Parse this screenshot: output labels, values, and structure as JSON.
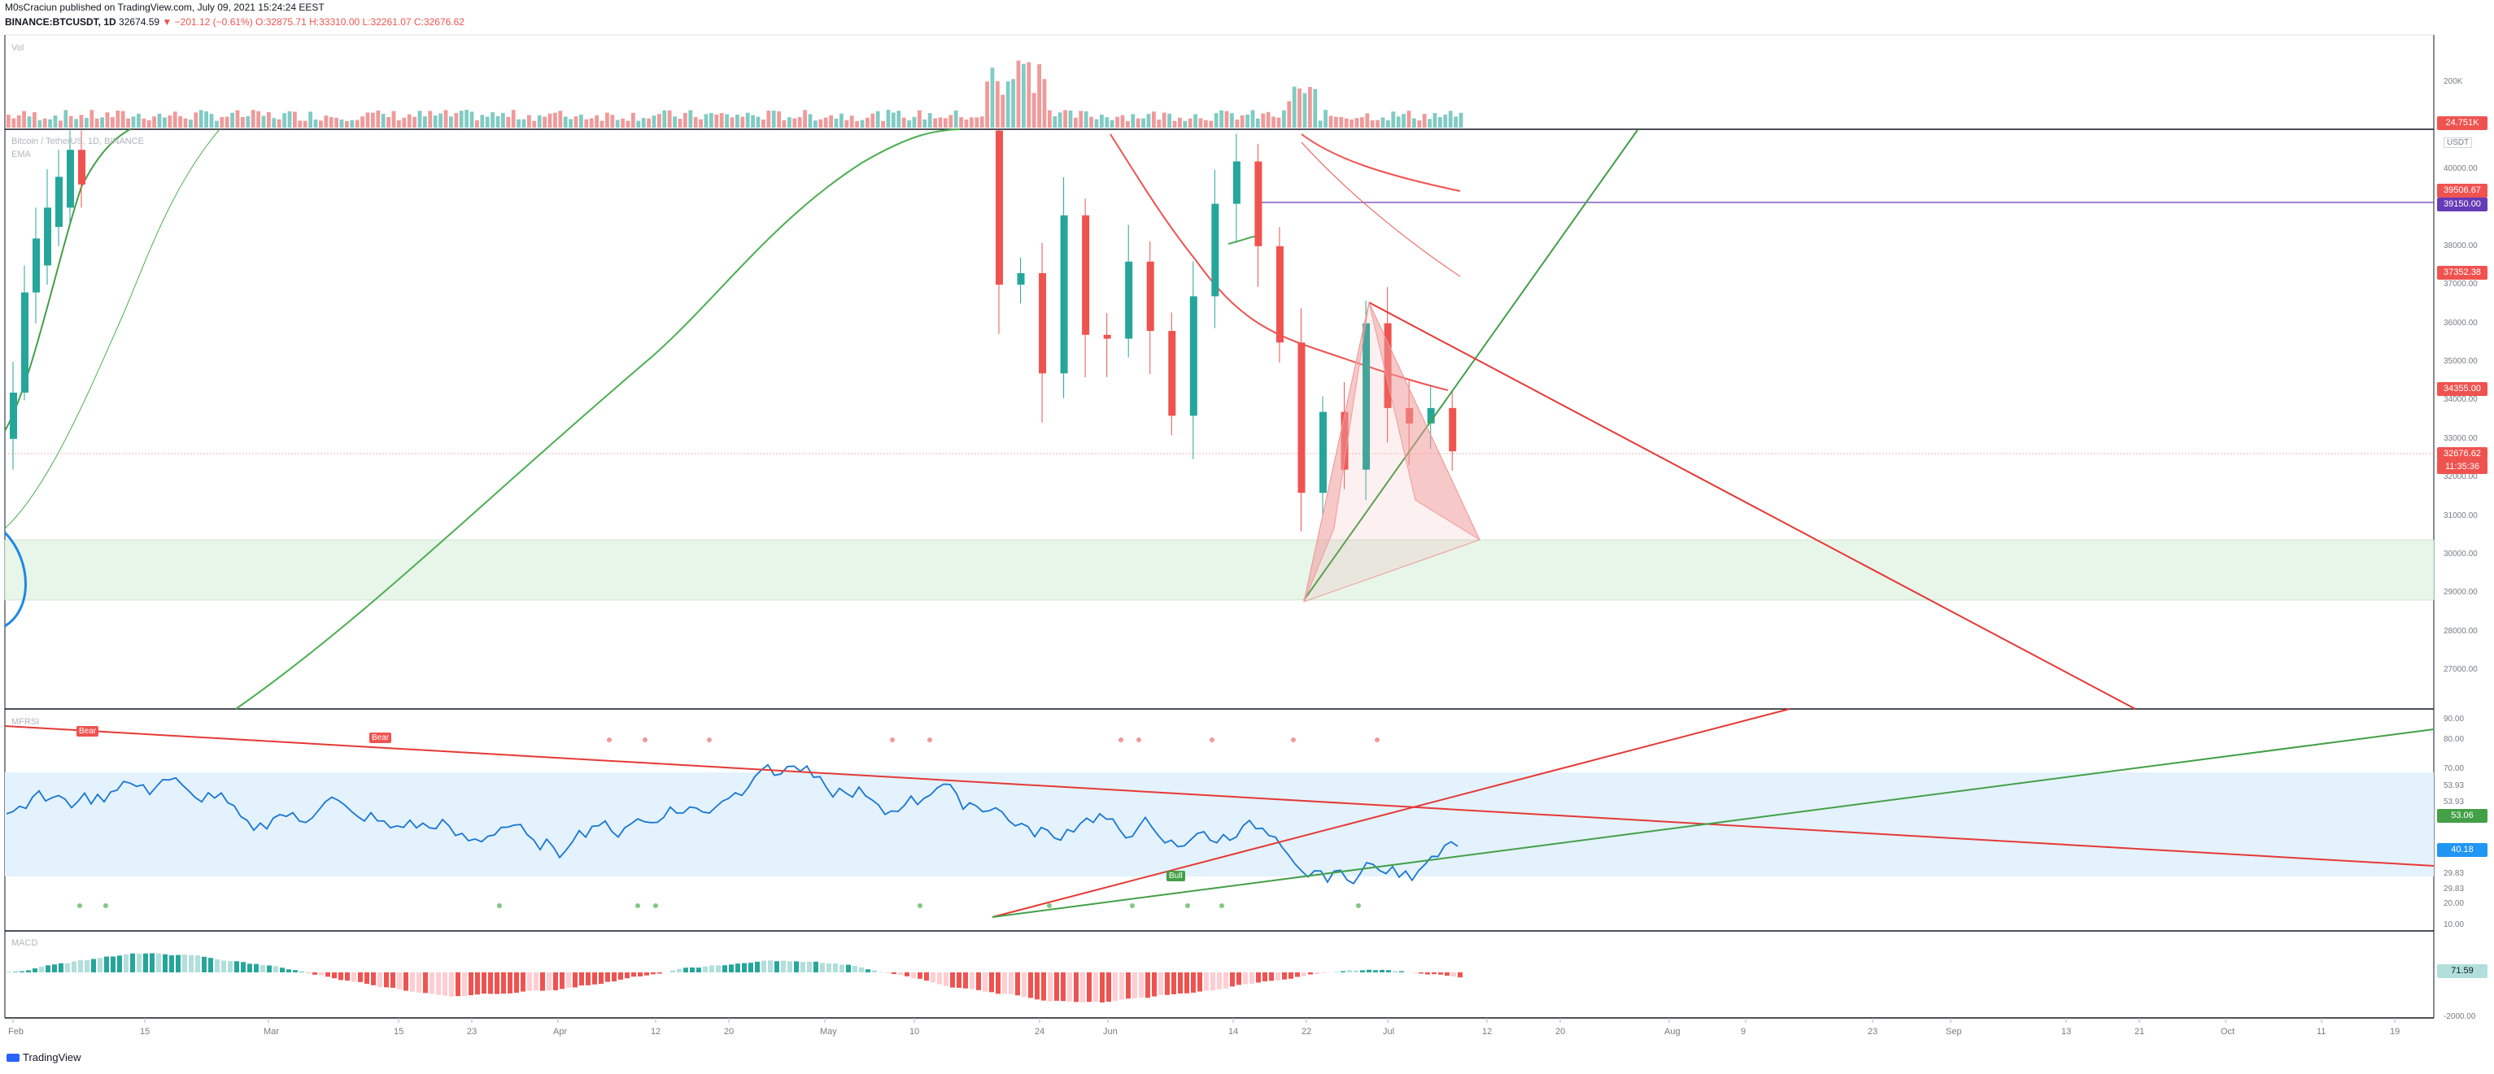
{
  "header": {
    "line1": "M0sCraciun published on TradingView.com, July 09, 2021 15:24:24 EEST",
    "symbol": "BINANCE:BTCUSDT, 1D",
    "price": "32674.59",
    "change": "▼ −201.12 (−0.61%)",
    "o": "O:32875.71",
    "h": "H:33310.00",
    "l": "L:32261.07",
    "c": "C:32676.62"
  },
  "panes": {
    "vol": "Vol",
    "main_title": "Bitcoin / TetherUS, 1D, BINANCE",
    "ema": "EMA",
    "rsi": "MFRSI",
    "macd": "MACD"
  },
  "labels": {
    "bear1": "Bear",
    "bear2": "Bear",
    "bull": "Bull"
  },
  "price_tags": {
    "vol_last": "24.751K",
    "usdt": "USDT",
    "t1": "39506.67",
    "t2": "39150.00",
    "t3": "37352.38",
    "t4": "34355.00",
    "t5": "32676.62",
    "t6": "11:35:36",
    "rsi1": "53.06",
    "rsi2": "40.18",
    "macd1": "71.59",
    "vol_axis": "200K"
  },
  "axis": {
    "price_ticks": [
      "40000.00",
      "39000.00",
      "38000.00",
      "37000.00",
      "36000.00",
      "35000.00",
      "34000.00",
      "33000.00",
      "32000.00",
      "31000.00",
      "30000.00",
      "29000.00",
      "28000.00",
      "27000.00"
    ],
    "rsi_ticks": [
      "90.00",
      "80.00",
      "70.00",
      "53.93",
      "53.93",
      "29.83",
      "29.83",
      "20.00",
      "10.00"
    ],
    "macd_tick": "-2000.00",
    "x_ticks": [
      "Feb",
      "15",
      "Mar",
      "15",
      "23",
      "Apr",
      "12",
      "20",
      "May",
      "10",
      "24",
      "Jun",
      "14",
      "22",
      "Jul",
      "12",
      "20",
      "Aug",
      "9",
      "23",
      "Sep",
      "13",
      "21",
      "Oct",
      "11",
      "19"
    ]
  },
  "brand": "TradingView",
  "colors": {
    "up": "#26a69a",
    "down": "#ef5350",
    "ema_fast": "#ef5350",
    "ema_slow": "#4caf50",
    "rsi_line": "#2962ff",
    "zone": "#e8f5e9"
  },
  "chart_data": {
    "type": "candlestick",
    "title": "Bitcoin / TetherUS, 1D, BINANCE",
    "ohlc_last": {
      "open": 32875.71,
      "high": 33310.0,
      "low": 32261.07,
      "close": 32676.62
    },
    "recent_closes": [
      {
        "x": "May 19",
        "close": 37000
      },
      {
        "x": "May 21",
        "close": 37300
      },
      {
        "x": "May 23",
        "close": 34700
      },
      {
        "x": "May 25",
        "close": 38800
      },
      {
        "x": "May 27",
        "close": 35700
      },
      {
        "x": "May 30",
        "close": 35600
      },
      {
        "x": "Jun 2",
        "close": 37600
      },
      {
        "x": "Jun 5",
        "close": 35800
      },
      {
        "x": "Jun 8",
        "close": 33600
      },
      {
        "x": "Jun 10",
        "close": 36700
      },
      {
        "x": "Jun 13",
        "close": 39100
      },
      {
        "x": "Jun 15",
        "close": 40200
      },
      {
        "x": "Jun 17",
        "close": 38000
      },
      {
        "x": "Jun 19",
        "close": 35500
      },
      {
        "x": "Jun 21",
        "close": 31600
      },
      {
        "x": "Jun 23",
        "close": 33700
      },
      {
        "x": "Jun 26",
        "close": 32200
      },
      {
        "x": "Jun 29",
        "close": 36000
      },
      {
        "x": "Jul 2",
        "close": 33800
      },
      {
        "x": "Jul 5",
        "close": 33400
      },
      {
        "x": "Jul 7",
        "close": 33800
      },
      {
        "x": "Jul 9",
        "close": 32676.62
      }
    ],
    "ylim": [
      26500,
      41000
    ],
    "yscale": "linear",
    "grid": false
  }
}
